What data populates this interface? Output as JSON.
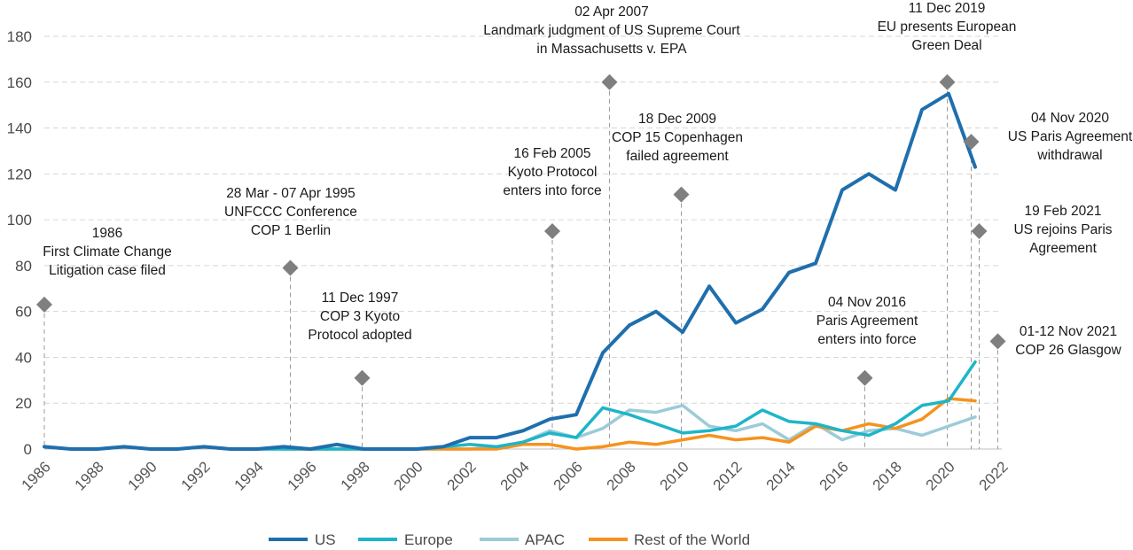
{
  "chart_data": {
    "type": "line",
    "title": "",
    "xlabel": "",
    "ylabel": "",
    "xlim": [
      1986,
      2022
    ],
    "ylim": [
      0,
      180
    ],
    "y_ticks": [
      "0",
      "20",
      "40",
      "60",
      "80",
      "100",
      "120",
      "140",
      "160",
      "180"
    ],
    "x_ticks": [
      "1986",
      "1988",
      "1990",
      "1992",
      "1994",
      "1996",
      "1998",
      "2000",
      "2002",
      "2004",
      "2006",
      "2008",
      "2010",
      "2012",
      "2014",
      "2016",
      "2018",
      "2020",
      "2022"
    ],
    "grid": "horizontal-dashed",
    "legend_position": "bottom",
    "series": [
      {
        "name": "US",
        "color": "#1f6fad",
        "points": [
          [
            1986,
            1
          ],
          [
            1987,
            0
          ],
          [
            1988,
            0
          ],
          [
            1989,
            1
          ],
          [
            1990,
            0
          ],
          [
            1991,
            0
          ],
          [
            1992,
            1
          ],
          [
            1993,
            0
          ],
          [
            1994,
            0
          ],
          [
            1995,
            1
          ],
          [
            1996,
            0
          ],
          [
            1997,
            2
          ],
          [
            1998,
            0
          ],
          [
            1999,
            0
          ],
          [
            2000,
            0
          ],
          [
            2001,
            1
          ],
          [
            2002,
            5
          ],
          [
            2003,
            5
          ],
          [
            2004,
            8
          ],
          [
            2005,
            13
          ],
          [
            2006,
            15
          ],
          [
            2007,
            42
          ],
          [
            2008,
            54
          ],
          [
            2009,
            60
          ],
          [
            2010,
            51
          ],
          [
            2011,
            71
          ],
          [
            2012,
            55
          ],
          [
            2013,
            61
          ],
          [
            2014,
            77
          ],
          [
            2015,
            81
          ],
          [
            2016,
            113
          ],
          [
            2017,
            120
          ],
          [
            2018,
            113
          ],
          [
            2019,
            148
          ],
          [
            2020,
            155
          ],
          [
            2021,
            123
          ]
        ]
      },
      {
        "name": "Europe",
        "color": "#1db5c9",
        "points": [
          [
            1993,
            0
          ],
          [
            1994,
            0
          ],
          [
            1995,
            0
          ],
          [
            1996,
            0
          ],
          [
            1997,
            0
          ],
          [
            1998,
            0
          ],
          [
            1999,
            0
          ],
          [
            2000,
            0
          ],
          [
            2001,
            1
          ],
          [
            2002,
            2
          ],
          [
            2003,
            1
          ],
          [
            2004,
            3
          ],
          [
            2005,
            7
          ],
          [
            2006,
            5
          ],
          [
            2007,
            18
          ],
          [
            2008,
            15
          ],
          [
            2009,
            11
          ],
          [
            2010,
            7
          ],
          [
            2011,
            8
          ],
          [
            2012,
            10
          ],
          [
            2013,
            17
          ],
          [
            2014,
            12
          ],
          [
            2015,
            11
          ],
          [
            2016,
            8
          ],
          [
            2017,
            6
          ],
          [
            2018,
            11
          ],
          [
            2019,
            19
          ],
          [
            2020,
            21
          ],
          [
            2021,
            38
          ]
        ]
      },
      {
        "name": "APAC",
        "color": "#9ccbd8",
        "points": [
          [
            1994,
            0
          ],
          [
            1995,
            0
          ],
          [
            1996,
            0
          ],
          [
            1997,
            0
          ],
          [
            1998,
            0
          ],
          [
            1999,
            0
          ],
          [
            2000,
            0
          ],
          [
            2001,
            0
          ],
          [
            2002,
            0
          ],
          [
            2003,
            1
          ],
          [
            2004,
            3
          ],
          [
            2005,
            8
          ],
          [
            2006,
            5
          ],
          [
            2007,
            9
          ],
          [
            2008,
            17
          ],
          [
            2009,
            16
          ],
          [
            2010,
            19
          ],
          [
            2011,
            10
          ],
          [
            2012,
            8
          ],
          [
            2013,
            11
          ],
          [
            2014,
            4
          ],
          [
            2015,
            11
          ],
          [
            2016,
            4
          ],
          [
            2017,
            8
          ],
          [
            2018,
            9
          ],
          [
            2019,
            6
          ],
          [
            2020,
            10
          ],
          [
            2021,
            14
          ]
        ]
      },
      {
        "name": "Rest of the World",
        "color": "#f5931e",
        "points": [
          [
            1995,
            0
          ],
          [
            1996,
            0
          ],
          [
            1997,
            0
          ],
          [
            1998,
            0
          ],
          [
            1999,
            0
          ],
          [
            2000,
            0
          ],
          [
            2001,
            0
          ],
          [
            2002,
            0
          ],
          [
            2003,
            0
          ],
          [
            2004,
            2
          ],
          [
            2005,
            2
          ],
          [
            2006,
            0
          ],
          [
            2007,
            1
          ],
          [
            2008,
            3
          ],
          [
            2009,
            2
          ],
          [
            2010,
            4
          ],
          [
            2011,
            6
          ],
          [
            2012,
            4
          ],
          [
            2013,
            5
          ],
          [
            2014,
            3
          ],
          [
            2015,
            10
          ],
          [
            2016,
            8
          ],
          [
            2017,
            11
          ],
          [
            2018,
            9
          ],
          [
            2019,
            13
          ],
          [
            2020,
            22
          ],
          [
            2021,
            21
          ]
        ]
      }
    ],
    "events": [
      {
        "x": 1986.0,
        "y": 63,
        "lines": [
          "1986",
          "First Climate Change",
          "Litigation case filed"
        ]
      },
      {
        "x": 1995.25,
        "y": 79,
        "lines": [
          "28 Mar - 07 Apr 1995",
          "UNFCCC Conference",
          "COP 1 Berlin"
        ]
      },
      {
        "x": 1997.95,
        "y": 31,
        "lines": [
          "11 Dec 1997",
          "COP 3 Kyoto",
          "Protocol adopted"
        ]
      },
      {
        "x": 2005.1,
        "y": 95,
        "lines": [
          "16 Feb 2005",
          "Kyoto Protocol",
          "enters into force"
        ]
      },
      {
        "x": 2007.25,
        "y": 160,
        "lines": [
          "02 Apr 2007",
          "Landmark judgment of US Supreme Court",
          "in Massachusetts v. EPA"
        ]
      },
      {
        "x": 2009.95,
        "y": 111,
        "lines": [
          "18 Dec 2009",
          "COP 15 Copenhagen",
          "failed agreement"
        ]
      },
      {
        "x": 2016.85,
        "y": 31,
        "lines": [
          "04 Nov 2016",
          "Paris Agreement",
          "enters into force"
        ]
      },
      {
        "x": 2019.95,
        "y": 160,
        "lines": [
          "11 Dec 2019",
          "EU presents European",
          "Green Deal"
        ]
      },
      {
        "x": 2020.85,
        "y": 134,
        "lines": [
          "04 Nov 2020",
          "US Paris Agreement",
          "withdrawal"
        ]
      },
      {
        "x": 2021.15,
        "y": 95,
        "lines": [
          "19 Feb 2021",
          "US rejoins Paris",
          "Agreement"
        ]
      },
      {
        "x": 2021.85,
        "y": 47,
        "lines": [
          "01-12 Nov 2021",
          "COP 26 Glasgow"
        ]
      }
    ]
  },
  "legend": {
    "items": [
      {
        "label": "US",
        "color": "#1f6fad"
      },
      {
        "label": "Europe",
        "color": "#1db5c9"
      },
      {
        "label": "APAC",
        "color": "#9ccbd8"
      },
      {
        "label": "Rest of the World",
        "color": "#f5931e"
      }
    ]
  }
}
